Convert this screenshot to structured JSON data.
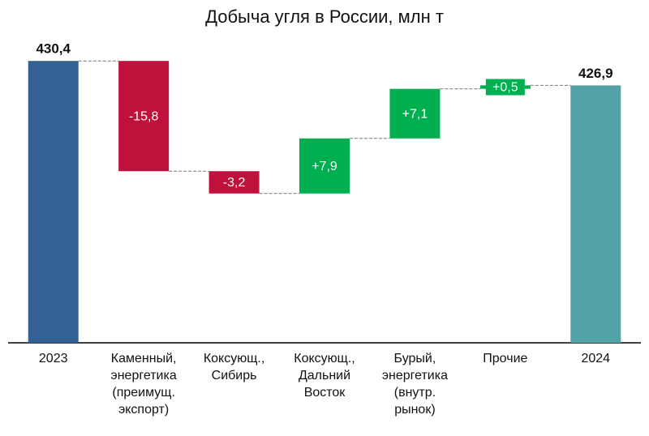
{
  "chart_data": {
    "type": "waterfall",
    "title": "Добыча угля в России, млн т",
    "categories": [
      "2023",
      "Каменный,\nэнергетика\n(преимущ.\nэкспорт)",
      "Коксующ.,\nСибирь",
      "Коксующ.,\nДальний\nВосток",
      "Бурый,\nэнергетика\n(внутр.\nрынок)",
      "Прочие",
      "2024"
    ],
    "values": [
      430.4,
      -15.8,
      -3.2,
      7.9,
      7.1,
      0.5,
      426.9
    ],
    "value_labels": [
      "430,4",
      "-15,8",
      "-3,2",
      "+7,9",
      "+7,1",
      "+0,5",
      "426,9"
    ],
    "measures": [
      "total",
      "relative",
      "relative",
      "relative",
      "relative",
      "relative",
      "total"
    ],
    "colors": [
      "#336095",
      "#c0103c",
      "#c0103c",
      "#00b050",
      "#00b050",
      "#00b050",
      "#52a2a7"
    ],
    "ylim": [
      390,
      436
    ]
  }
}
